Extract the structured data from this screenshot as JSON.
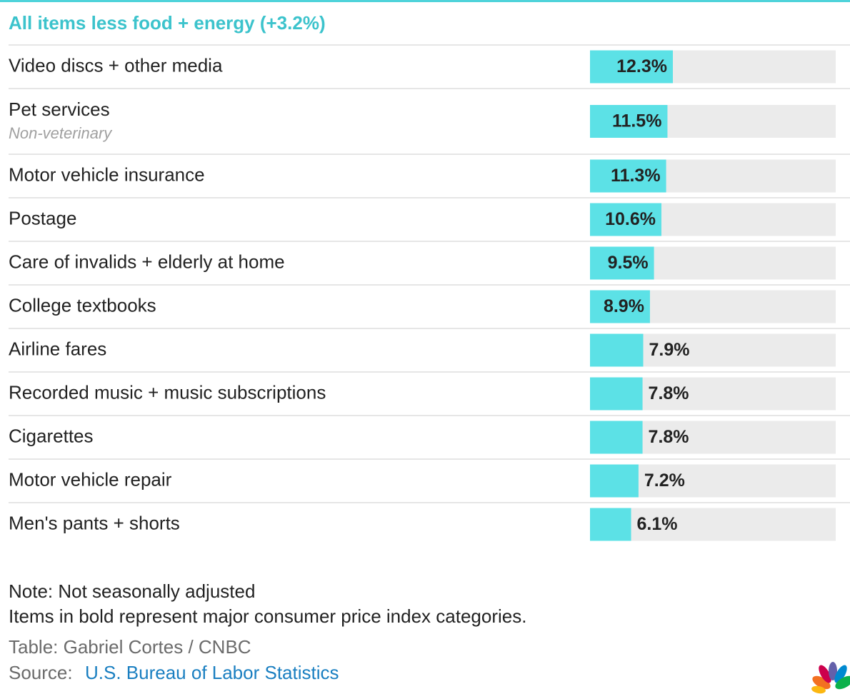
{
  "chart_data": {
    "type": "bar",
    "title": "All items less food + energy (+3.2%)",
    "categories": [
      "Video discs + other media",
      "Pet services",
      "Motor vehicle insurance",
      "Postage",
      "Care of invalids + elderly at home",
      "College textbooks",
      "Airline fares",
      "Recorded music + music subscriptions",
      "Cigarettes",
      "Motor vehicle repair",
      "Men's pants + shorts"
    ],
    "sublabels": [
      null,
      "Non-veterinary",
      null,
      null,
      null,
      null,
      null,
      null,
      null,
      null,
      null
    ],
    "values": [
      12.3,
      11.5,
      11.3,
      10.6,
      9.5,
      8.9,
      7.9,
      7.8,
      7.8,
      7.2,
      6.1
    ],
    "value_labels": [
      "12.3%",
      "11.5%",
      "11.3%",
      "10.6%",
      "9.5%",
      "8.9%",
      "7.9%",
      "7.8%",
      "7.8%",
      "7.2%",
      "6.1%"
    ],
    "color": "#5ce1e6"
  },
  "footer": {
    "note": "Note: Not seasonally adjusted",
    "description": "Items in bold represent major consumer price index categories.",
    "credit": "Table: Gabriel Cortes / CNBC",
    "source_prefix": "Source:",
    "source_link": "U.S. Bureau of Labor Statistics"
  }
}
